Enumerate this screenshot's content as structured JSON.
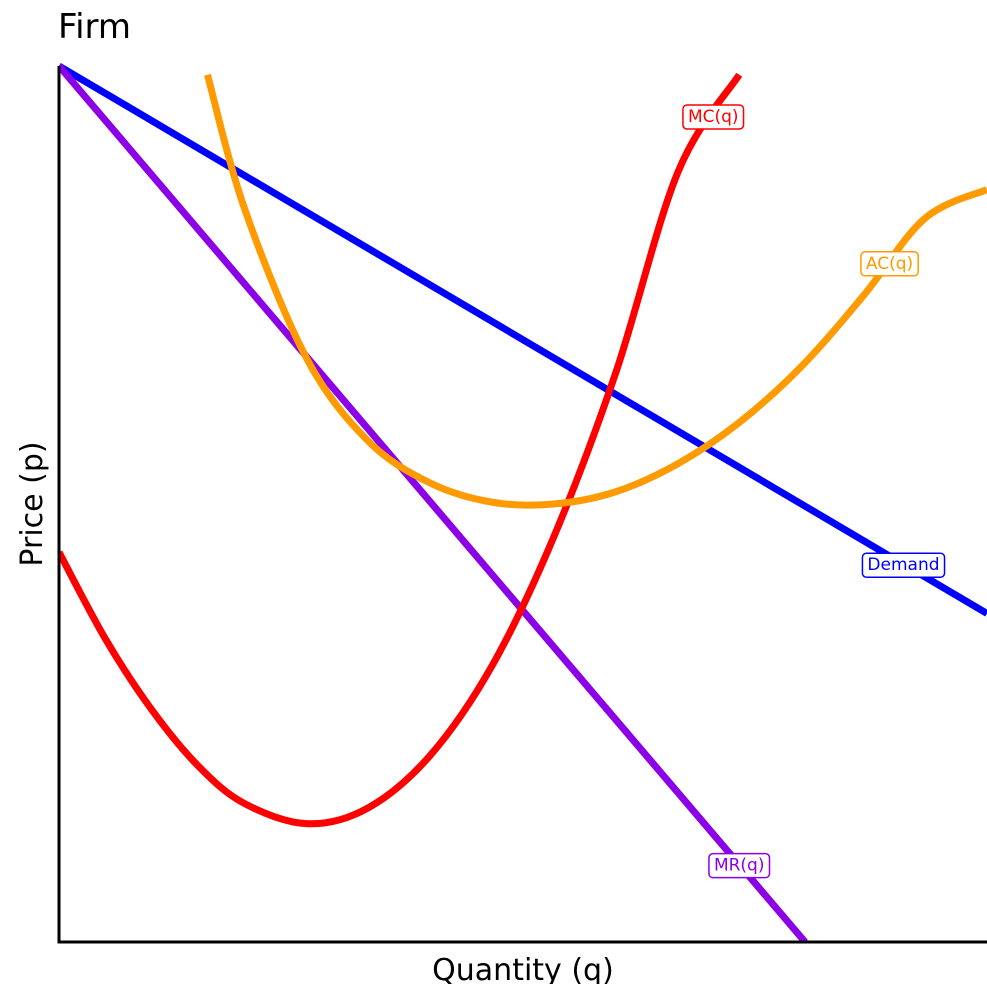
{
  "chart_data": {
    "type": "line",
    "title": "Firm",
    "xlabel": "Quantity (q)",
    "ylabel": "Price (p)",
    "xlim": [
      0,
      100
    ],
    "ylim": [
      0,
      100
    ],
    "grid": false,
    "legend": "none",
    "series": [
      {
        "name": "Demand",
        "color": "#0000ff",
        "label_at": 91,
        "points": [
          [
            0,
            100
          ],
          [
            100,
            37.5
          ]
        ]
      },
      {
        "name": "MR(q)",
        "color": "#8b00e6",
        "label_at": 73.3,
        "points": [
          [
            0,
            100
          ],
          [
            80.4,
            0
          ]
        ]
      },
      {
        "name": "MC(q)",
        "color": "#ff0000",
        "label_at": 70.5,
        "points": [
          [
            0,
            44.5
          ],
          [
            5,
            34.6
          ],
          [
            10,
            26.5
          ],
          [
            15,
            20.1
          ],
          [
            20,
            15.8
          ],
          [
            26.8,
            13.5
          ],
          [
            33.3,
            15.3
          ],
          [
            40,
            21.3
          ],
          [
            46.7,
            31.6
          ],
          [
            53.3,
            46.2
          ],
          [
            60,
            65.0
          ],
          [
            66.7,
            87.9
          ],
          [
            73.3,
            99.0
          ]
        ]
      },
      {
        "name": "AC(q)",
        "color": "#ff9a00",
        "label_at": 89.5,
        "points": [
          [
            16,
            99.0
          ],
          [
            20,
            83.7
          ],
          [
            26.7,
            66.6
          ],
          [
            33.3,
            57.2
          ],
          [
            40,
            52.4
          ],
          [
            46.7,
            50.2
          ],
          [
            53.3,
            50.0
          ],
          [
            60,
            51.4
          ],
          [
            66.7,
            54.6
          ],
          [
            73.3,
            59.3
          ],
          [
            80,
            65.7
          ],
          [
            86.7,
            73.8
          ],
          [
            93.3,
            82.6
          ],
          [
            100,
            85.9
          ]
        ]
      }
    ]
  }
}
